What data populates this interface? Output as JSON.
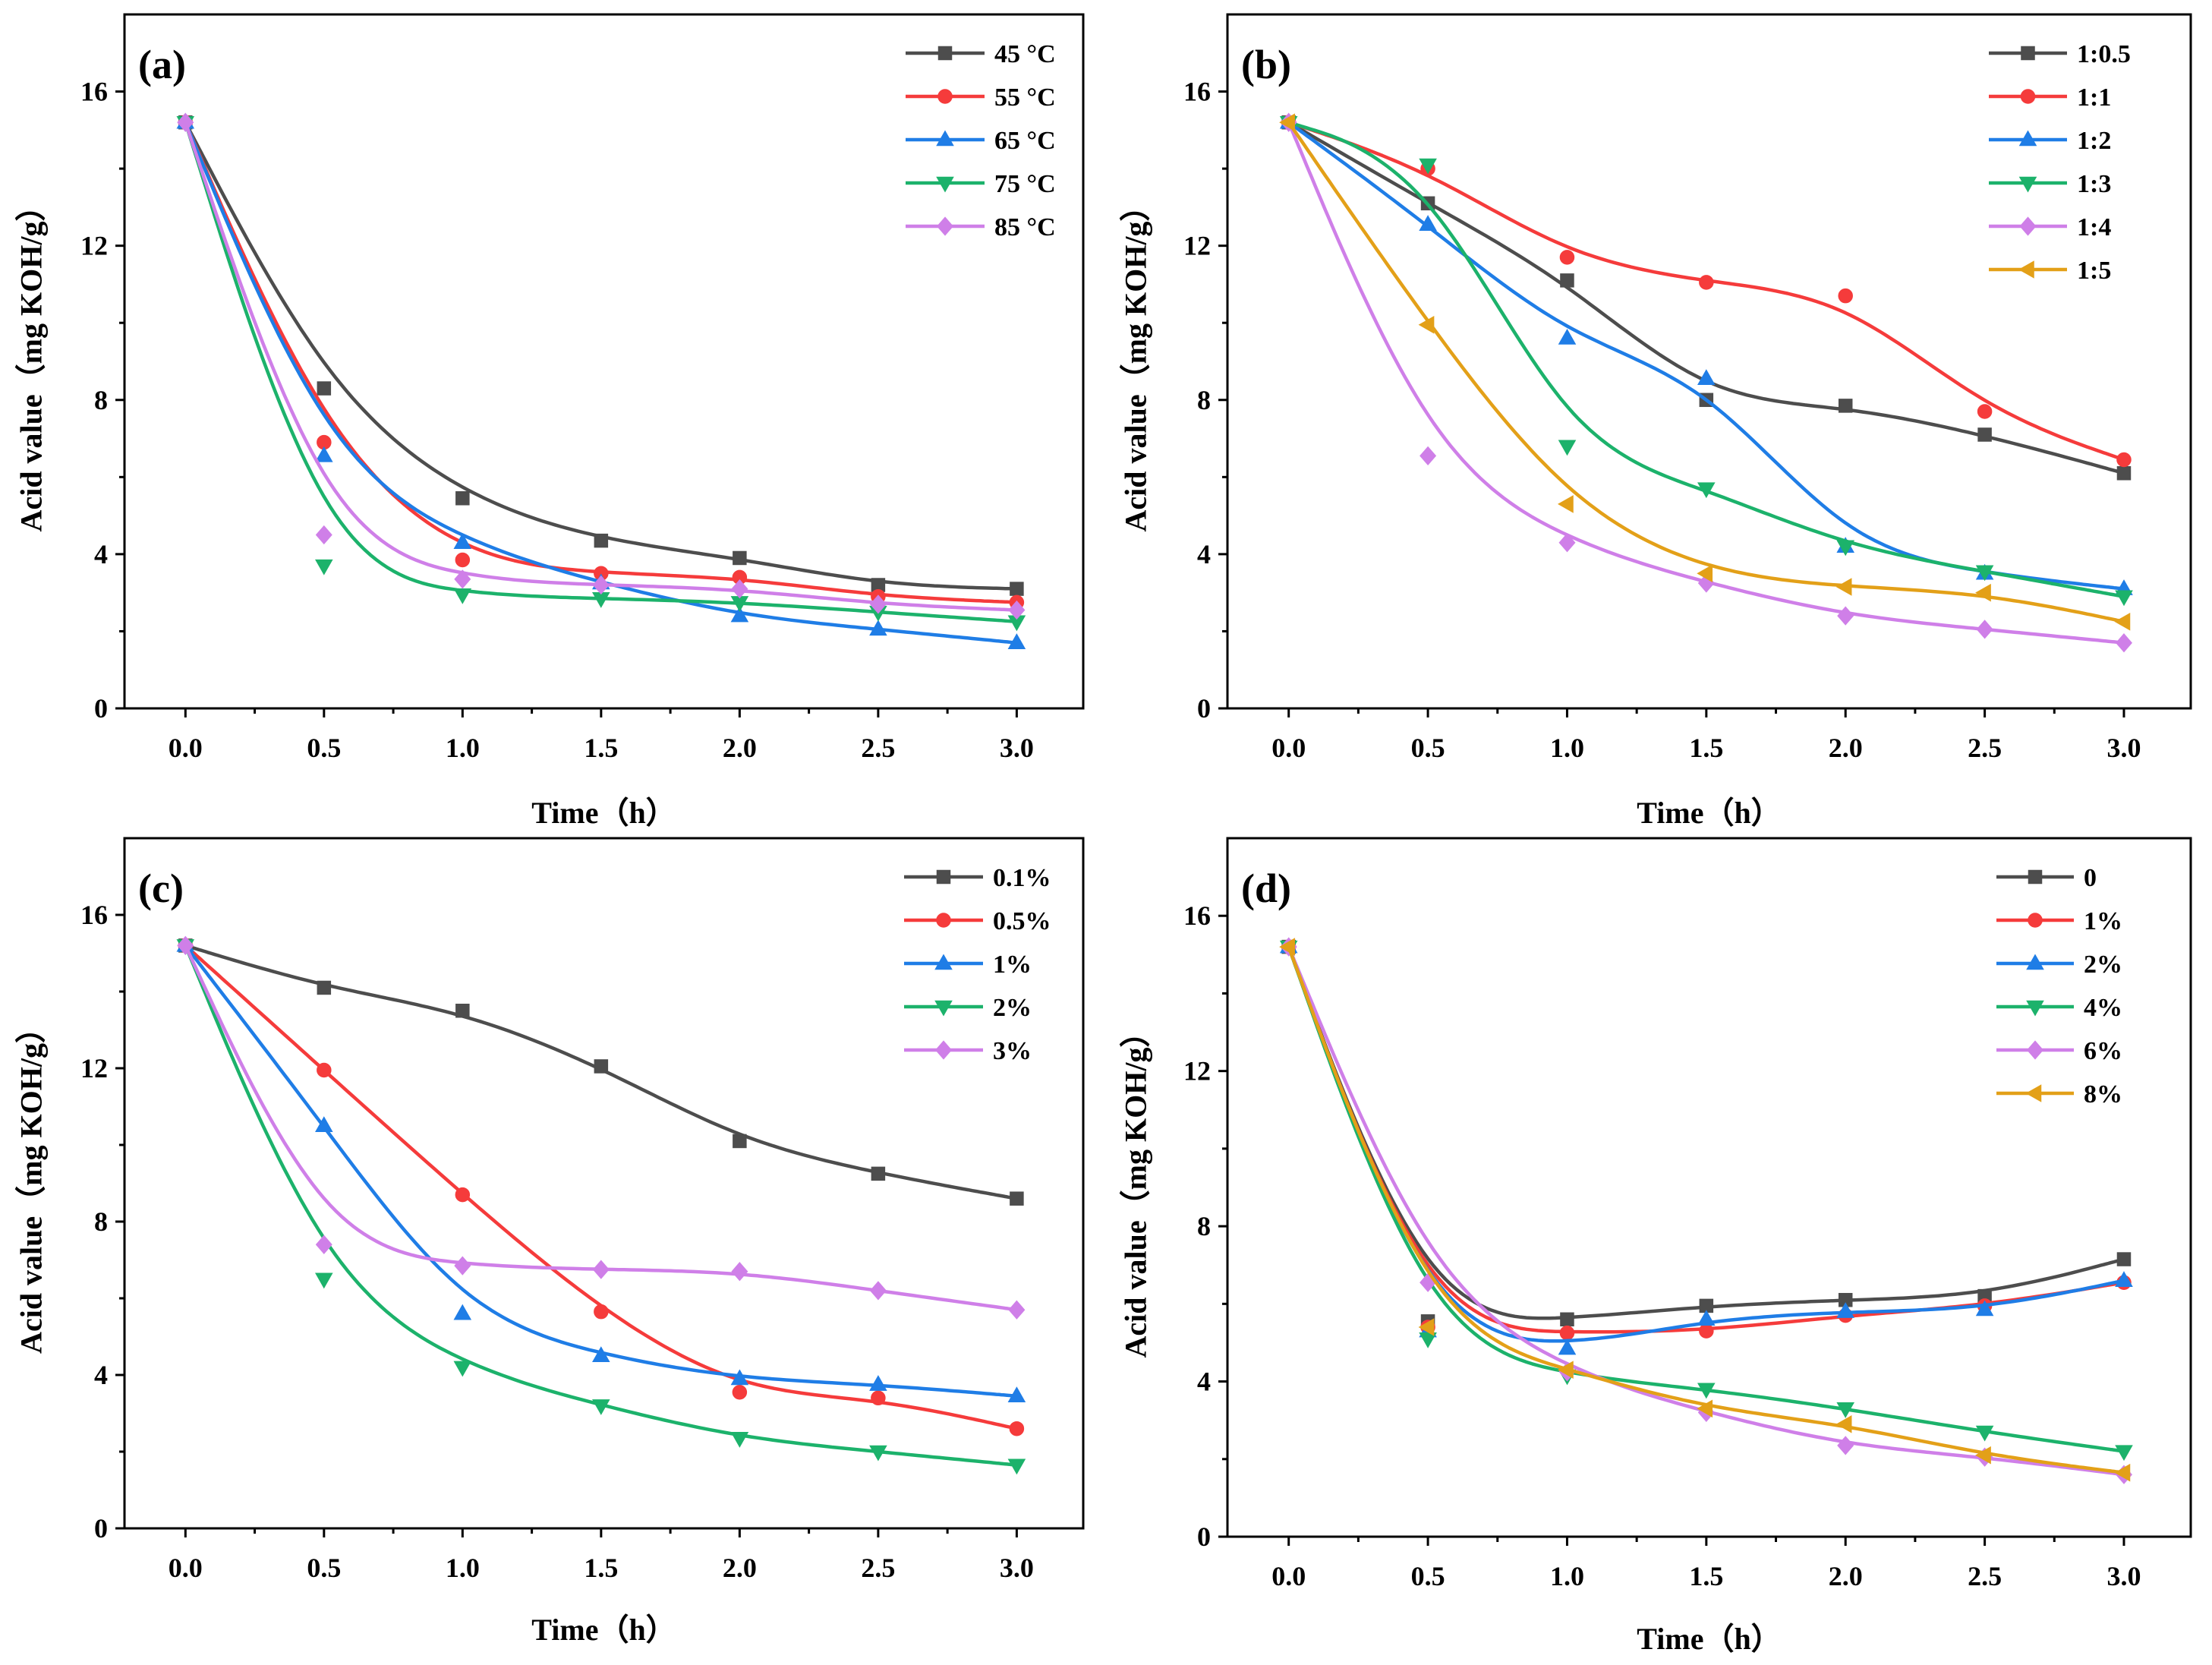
{
  "chart_data": [
    {
      "type": "line",
      "panel_label": "(a)",
      "xlabel": "Time（h）",
      "ylabel": "Acid value（mg KOH/g）",
      "xlim": [
        -0.22,
        3.24
      ],
      "ylim": [
        0,
        18
      ],
      "xticks": [
        0,
        0.5,
        1.0,
        1.5,
        2.0,
        2.5,
        3.0
      ],
      "xtick_labels": [
        "0.0",
        "0.5",
        "1.0",
        "1.5",
        "2.0",
        "2.5",
        "3.0"
      ],
      "yticks": [
        0,
        4,
        8,
        12,
        16
      ],
      "ytick_labels": [
        "0",
        "4",
        "8",
        "12",
        "16"
      ],
      "legend_position": "top-right",
      "x": [
        0,
        0.5,
        1.0,
        1.5,
        2.0,
        2.5,
        3.0
      ],
      "series": [
        {
          "name": "45 °C",
          "color": "#4d4d4d",
          "marker": "square",
          "values": [
            15.2,
            8.3,
            5.45,
            4.35,
            3.9,
            3.2,
            3.1
          ]
        },
        {
          "name": "55 °C",
          "color": "#f53b3b",
          "marker": "circle",
          "values": [
            15.2,
            6.9,
            3.85,
            3.5,
            3.4,
            2.9,
            2.75
          ]
        },
        {
          "name": "65 °C",
          "color": "#1f7de6",
          "marker": "triangle-up",
          "values": [
            15.2,
            6.55,
            4.3,
            3.25,
            2.4,
            2.05,
            1.7
          ]
        },
        {
          "name": "75 °C",
          "color": "#1cb26b",
          "marker": "triangle-down",
          "values": [
            15.2,
            3.7,
            2.95,
            2.85,
            2.75,
            2.5,
            2.25
          ]
        },
        {
          "name": "85 °C",
          "color": "#cf7fe8",
          "marker": "diamond",
          "values": [
            15.2,
            4.5,
            3.35,
            3.2,
            3.1,
            2.7,
            2.55
          ]
        }
      ]
    },
    {
      "type": "line",
      "panel_label": "(b)",
      "xlabel": "Time（h）",
      "ylabel": "Acid value（mg KOH/g）",
      "xlim": [
        -0.22,
        3.24
      ],
      "ylim": [
        0,
        18
      ],
      "xticks": [
        0,
        0.5,
        1.0,
        1.5,
        2.0,
        2.5,
        3.0
      ],
      "xtick_labels": [
        "0.0",
        "0.5",
        "1.0",
        "1.5",
        "2.0",
        "2.5",
        "3.0"
      ],
      "yticks": [
        0,
        4,
        8,
        12,
        16
      ],
      "ytick_labels": [
        "0",
        "4",
        "8",
        "12",
        "16"
      ],
      "legend_position": "top-right",
      "x": [
        0,
        0.5,
        1.0,
        1.5,
        2.0,
        2.5,
        3.0
      ],
      "series": [
        {
          "name": "1:0.5",
          "color": "#4d4d4d",
          "marker": "square",
          "values": [
            15.2,
            13.1,
            11.1,
            8.0,
            7.85,
            7.1,
            6.1
          ]
        },
        {
          "name": "1:1",
          "color": "#f53b3b",
          "marker": "circle",
          "values": [
            15.2,
            14.0,
            11.7,
            11.05,
            10.7,
            7.7,
            6.45
          ]
        },
        {
          "name": "1:2",
          "color": "#1f7de6",
          "marker": "triangle-up",
          "values": [
            15.2,
            12.55,
            9.6,
            8.55,
            4.2,
            3.5,
            3.1
          ]
        },
        {
          "name": "1:3",
          "color": "#1cb26b",
          "marker": "triangle-down",
          "values": [
            15.2,
            14.1,
            6.8,
            5.7,
            4.2,
            3.55,
            2.9
          ]
        },
        {
          "name": "1:4",
          "color": "#cf7fe8",
          "marker": "diamond",
          "values": [
            15.2,
            6.55,
            4.3,
            3.25,
            2.4,
            2.05,
            1.7
          ]
        },
        {
          "name": "1:5",
          "color": "#e3a018",
          "marker": "triangle-left",
          "values": [
            15.2,
            9.95,
            5.3,
            3.5,
            3.15,
            3.0,
            2.25
          ]
        }
      ]
    },
    {
      "type": "line",
      "panel_label": "(c)",
      "xlabel": "Time（h）",
      "ylabel": "Acid value（mg KOH/g）",
      "xlim": [
        -0.22,
        3.24
      ],
      "ylim": [
        0,
        18
      ],
      "xticks": [
        0,
        0.5,
        1.0,
        1.5,
        2.0,
        2.5,
        3.0
      ],
      "xtick_labels": [
        "0.0",
        "0.5",
        "1.0",
        "1.5",
        "2.0",
        "2.5",
        "3.0"
      ],
      "yticks": [
        0,
        4,
        8,
        12,
        16
      ],
      "ytick_labels": [
        "0",
        "4",
        "8",
        "12",
        "16"
      ],
      "legend_position": "top-right",
      "x": [
        0,
        0.5,
        1.0,
        1.5,
        2.0,
        2.5,
        3.0
      ],
      "series": [
        {
          "name": "0.1%",
          "color": "#4d4d4d",
          "marker": "square",
          "values": [
            15.2,
            14.1,
            13.5,
            12.05,
            10.1,
            9.25,
            8.6
          ]
        },
        {
          "name": "0.5%",
          "color": "#f53b3b",
          "marker": "circle",
          "values": [
            15.2,
            11.95,
            8.7,
            5.65,
            3.55,
            3.4,
            2.6
          ]
        },
        {
          "name": "1%",
          "color": "#1f7de6",
          "marker": "triangle-up",
          "values": [
            15.2,
            10.5,
            5.6,
            4.5,
            3.9,
            3.75,
            3.45
          ]
        },
        {
          "name": "2%",
          "color": "#1cb26b",
          "marker": "triangle-down",
          "values": [
            15.2,
            6.5,
            4.2,
            3.2,
            2.35,
            2.0,
            1.65
          ]
        },
        {
          "name": "3%",
          "color": "#cf7fe8",
          "marker": "diamond",
          "values": [
            15.2,
            7.4,
            6.85,
            6.75,
            6.7,
            6.2,
            5.7
          ]
        }
      ]
    },
    {
      "type": "line",
      "panel_label": "(d)",
      "xlabel": "Time（h）",
      "ylabel": "Acid value（mg KOH/g）",
      "xlim": [
        -0.22,
        3.24
      ],
      "ylim": [
        0,
        18
      ],
      "xticks": [
        0,
        0.5,
        1.0,
        1.5,
        2.0,
        2.5,
        3.0
      ],
      "xtick_labels": [
        "0.0",
        "0.5",
        "1.0",
        "1.5",
        "2.0",
        "2.5",
        "3.0"
      ],
      "yticks": [
        0,
        4,
        8,
        12,
        16
      ],
      "ytick_labels": [
        "0",
        "4",
        "8",
        "12",
        "16"
      ],
      "legend_position": "top-right",
      "x": [
        0,
        0.5,
        1.0,
        1.5,
        2.0,
        2.5,
        3.0
      ],
      "series": [
        {
          "name": "0",
          "color": "#4d4d4d",
          "marker": "square",
          "values": [
            15.2,
            5.55,
            5.6,
            5.95,
            6.1,
            6.2,
            7.15
          ]
        },
        {
          "name": "1%",
          "color": "#f53b3b",
          "marker": "circle",
          "values": [
            15.2,
            5.4,
            5.25,
            5.3,
            5.7,
            5.95,
            6.55
          ]
        },
        {
          "name": "2%",
          "color": "#1f7de6",
          "marker": "triangle-up",
          "values": [
            15.2,
            5.3,
            4.85,
            5.6,
            5.8,
            5.85,
            6.6
          ]
        },
        {
          "name": "4%",
          "color": "#1cb26b",
          "marker": "triangle-down",
          "values": [
            15.2,
            5.1,
            4.15,
            3.8,
            3.3,
            2.7,
            2.2
          ]
        },
        {
          "name": "6%",
          "color": "#cf7fe8",
          "marker": "diamond",
          "values": [
            15.2,
            6.55,
            4.25,
            3.2,
            2.35,
            2.05,
            1.6
          ]
        },
        {
          "name": "8%",
          "color": "#e3a018",
          "marker": "triangle-left",
          "values": [
            15.2,
            5.4,
            4.3,
            3.3,
            2.9,
            2.1,
            1.65
          ]
        }
      ]
    }
  ]
}
